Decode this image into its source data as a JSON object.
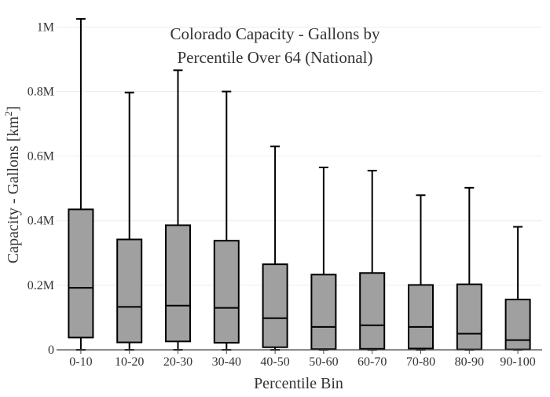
{
  "chart_data": {
    "type": "box",
    "title_lines": [
      "Colorado Capacity - Gallons by",
      "Percentile Over 64 (National)"
    ],
    "xlabel": "Percentile Bin",
    "ylabel_main": "Capacity - Gallons  [km",
    "ylabel_sup": "2",
    "ylabel_end": "]",
    "ylim": [
      0,
      1030000
    ],
    "yticks": [
      {
        "value": 0,
        "label": "0"
      },
      {
        "value": 200000,
        "label": "0.2M"
      },
      {
        "value": 400000,
        "label": "0.4M"
      },
      {
        "value": 600000,
        "label": "0.6M"
      },
      {
        "value": 800000,
        "label": "0.8M"
      },
      {
        "value": 1000000,
        "label": "1M"
      }
    ],
    "grid": true,
    "colors": {
      "box_fill": "#a0a0a0",
      "line": "#000000",
      "grid": "#eeeeee",
      "axis": "#444444"
    },
    "categories": [
      "0-10",
      "10-20",
      "20-30",
      "30-40",
      "40-50",
      "50-60",
      "60-70",
      "70-80",
      "80-90",
      "90-100"
    ],
    "boxes": [
      {
        "category": "0-10",
        "min": 0,
        "q1": 38000,
        "median": 192000,
        "q3": 435000,
        "max": 1025000
      },
      {
        "category": "10-20",
        "min": 0,
        "q1": 23000,
        "median": 133000,
        "q3": 342000,
        "max": 797000
      },
      {
        "category": "20-30",
        "min": 0,
        "q1": 26000,
        "median": 137000,
        "q3": 386000,
        "max": 866000
      },
      {
        "category": "30-40",
        "min": 0,
        "q1": 22000,
        "median": 130000,
        "q3": 338000,
        "max": 800000
      },
      {
        "category": "40-50",
        "min": 0,
        "q1": 8000,
        "median": 98000,
        "q3": 265000,
        "max": 630000
      },
      {
        "category": "50-60",
        "min": 0,
        "q1": 2000,
        "median": 71000,
        "q3": 233000,
        "max": 565000
      },
      {
        "category": "60-70",
        "min": 0,
        "q1": 3000,
        "median": 76000,
        "q3": 238000,
        "max": 555000
      },
      {
        "category": "70-80",
        "min": 0,
        "q1": 4000,
        "median": 71000,
        "q3": 201000,
        "max": 479000
      },
      {
        "category": "80-90",
        "min": 0,
        "q1": 1000,
        "median": 50000,
        "q3": 203000,
        "max": 502000
      },
      {
        "category": "90-100",
        "min": 0,
        "q1": 1000,
        "median": 30000,
        "q3": 156000,
        "max": 381000
      }
    ]
  }
}
